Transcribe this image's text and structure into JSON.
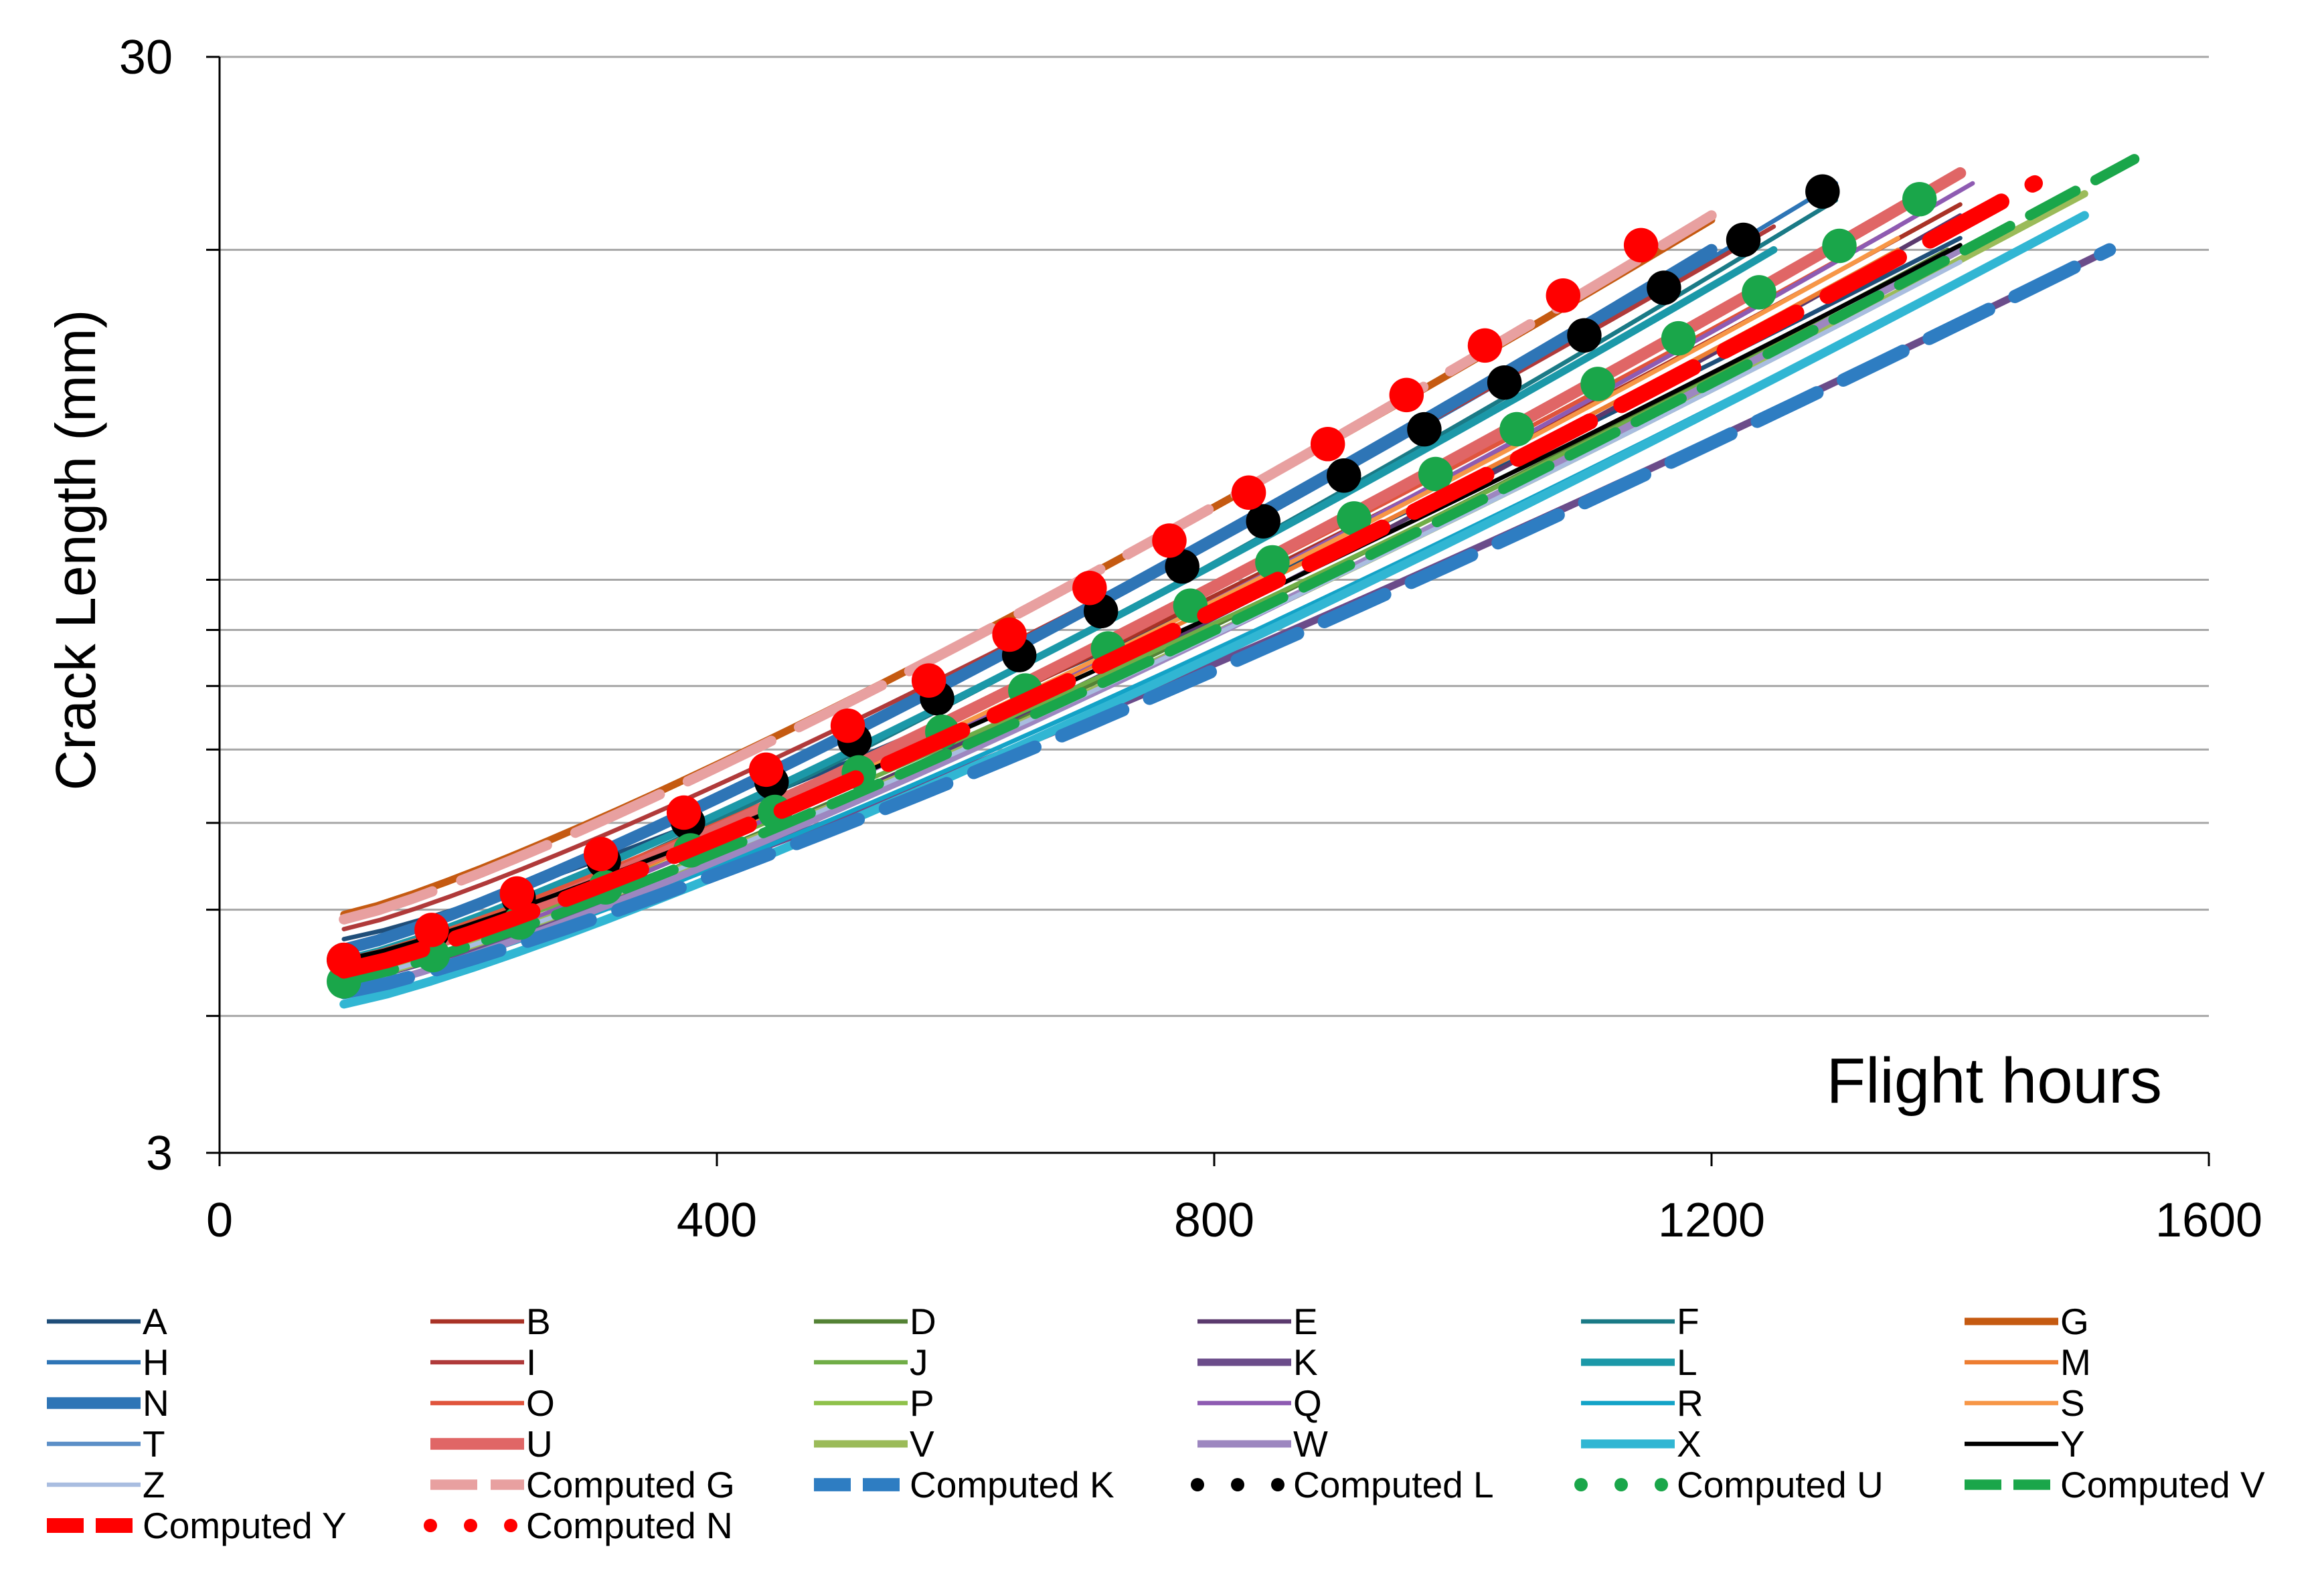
{
  "chart_data": {
    "type": "line",
    "title": "",
    "xlabel": "Flight hours",
    "ylabel": "Crack Length (mm)",
    "x_scale": "linear",
    "y_scale": "log",
    "xlim": [
      0,
      1600
    ],
    "ylim": [
      3,
      30
    ],
    "x_ticks": [
      0,
      400,
      800,
      1200,
      1600
    ],
    "x_tick_labels": [
      "0",
      "400",
      "800",
      "1200",
      "1600"
    ],
    "y_tick_labels": [
      {
        "value": 3,
        "label": "3"
      },
      {
        "value": 30,
        "label": "30"
      }
    ],
    "y_gridlines": [
      4,
      5,
      6,
      7,
      8,
      9,
      10,
      20,
      30
    ],
    "grid": true,
    "legend_position": "bottom",
    "series": [
      {
        "name": "A",
        "color": "#1f4e79",
        "style": "solid",
        "width": 3,
        "x": [
          100,
          1400
        ],
        "y": [
          4.7,
          20.5
        ]
      },
      {
        "name": "B",
        "color": "#a93226",
        "style": "solid",
        "width": 3,
        "x": [
          100,
          1400
        ],
        "y": [
          4.5,
          22.0
        ]
      },
      {
        "name": "D",
        "color": "#548235",
        "style": "solid",
        "width": 3,
        "x": [
          100,
          1390
        ],
        "y": [
          4.3,
          20.0
        ]
      },
      {
        "name": "E",
        "color": "#5b3a6e",
        "style": "solid",
        "width": 3,
        "x": [
          100,
          1400
        ],
        "y": [
          4.2,
          21.5
        ]
      },
      {
        "name": "F",
        "color": "#1a7a86",
        "style": "solid",
        "width": 3,
        "x": [
          100,
          1300
        ],
        "y": [
          4.4,
          22.2
        ]
      },
      {
        "name": "G",
        "color": "#c55a11",
        "style": "solid",
        "width": 5,
        "x": [
          100,
          1200
        ],
        "y": [
          4.95,
          21.3
        ]
      },
      {
        "name": "H",
        "color": "#2e75b6",
        "style": "solid",
        "width": 3,
        "x": [
          100,
          1300
        ],
        "y": [
          4.6,
          23.0
        ]
      },
      {
        "name": "I",
        "color": "#b03a3a",
        "style": "solid",
        "width": 3,
        "x": [
          100,
          1250
        ],
        "y": [
          4.8,
          21.0
        ]
      },
      {
        "name": "J",
        "color": "#70ad47",
        "style": "solid",
        "width": 3,
        "x": [
          100,
          1400
        ],
        "y": [
          4.4,
          20.0
        ]
      },
      {
        "name": "K",
        "color": "#6b4c8a",
        "style": "solid",
        "width": 5,
        "x": [
          100,
          1520
        ],
        "y": [
          4.3,
          20.0
        ]
      },
      {
        "name": "L",
        "color": "#1b98a8",
        "style": "solid",
        "width": 5,
        "x": [
          100,
          1250
        ],
        "y": [
          4.5,
          20.0
        ]
      },
      {
        "name": "M",
        "color": "#ed7d31",
        "style": "solid",
        "width": 3,
        "x": [
          100,
          1350
        ],
        "y": [
          4.4,
          20.0
        ]
      },
      {
        "name": "N",
        "color": "#2e75b6",
        "style": "solid",
        "width": 8,
        "x": [
          100,
          1200
        ],
        "y": [
          4.6,
          20.0
        ]
      },
      {
        "name": "O",
        "color": "#e0543c",
        "style": "solid",
        "width": 3,
        "x": [
          100,
          1350
        ],
        "y": [
          4.5,
          21.0
        ]
      },
      {
        "name": "P",
        "color": "#8fc14a",
        "style": "solid",
        "width": 3,
        "x": [
          100,
          1400
        ],
        "y": [
          4.3,
          19.5
        ]
      },
      {
        "name": "Q",
        "color": "#8e5bb2",
        "style": "solid",
        "width": 3,
        "x": [
          100,
          1410
        ],
        "y": [
          4.3,
          23.0
        ]
      },
      {
        "name": "R",
        "color": "#13a3c7",
        "style": "solid",
        "width": 3,
        "x": [
          100,
          1500
        ],
        "y": [
          4.2,
          21.5
        ]
      },
      {
        "name": "S",
        "color": "#f79646",
        "style": "solid",
        "width": 3,
        "x": [
          100,
          1350
        ],
        "y": [
          4.4,
          20.5
        ]
      },
      {
        "name": "T",
        "color": "#5b8fc7",
        "style": "solid",
        "width": 3,
        "x": [
          100,
          1400
        ],
        "y": [
          4.3,
          19.5
        ]
      },
      {
        "name": "U",
        "color": "#e06666",
        "style": "solid",
        "width": 8,
        "x": [
          100,
          1400
        ],
        "y": [
          4.4,
          23.5
        ]
      },
      {
        "name": "V",
        "color": "#9bbb59",
        "style": "solid",
        "width": 5,
        "x": [
          100,
          1500
        ],
        "y": [
          4.3,
          22.5
        ]
      },
      {
        "name": "W",
        "color": "#9d87c0",
        "style": "solid",
        "width": 5,
        "x": [
          100,
          1400
        ],
        "y": [
          4.2,
          20.0
        ]
      },
      {
        "name": "X",
        "color": "#31b6d3",
        "style": "solid",
        "width": 6,
        "x": [
          100,
          1500
        ],
        "y": [
          4.1,
          21.5
        ]
      },
      {
        "name": "Y",
        "color": "#000000",
        "style": "solid",
        "width": 3,
        "x": [
          100,
          1400
        ],
        "y": [
          4.5,
          20.2
        ]
      },
      {
        "name": "Z",
        "color": "#a9bde0",
        "style": "solid",
        "width": 3,
        "x": [
          100,
          1400
        ],
        "y": [
          4.3,
          19.5
        ]
      },
      {
        "name": "Computed G",
        "color": "#e8a0a0",
        "style": "long-dash",
        "width": 7,
        "x": [
          100,
          1200
        ],
        "y": [
          4.9,
          21.5
        ]
      },
      {
        "name": "Computed K",
        "color": "#2e7dc2",
        "style": "dash",
        "width": 9,
        "x": [
          100,
          1520
        ],
        "y": [
          4.2,
          20.0
        ]
      },
      {
        "name": "Computed L",
        "color": "#000000",
        "style": "dot",
        "width": 9,
        "x": [
          100,
          1300
        ],
        "y": [
          4.5,
          23.0
        ]
      },
      {
        "name": "Computed U",
        "color": "#1aa64a",
        "style": "dot",
        "width": 9,
        "x": [
          100,
          1430
        ],
        "y": [
          4.3,
          24.5
        ]
      },
      {
        "name": "Computed V",
        "color": "#1aa64a",
        "style": "dash",
        "width": 7,
        "x": [
          100,
          1540
        ],
        "y": [
          4.3,
          24.2
        ]
      },
      {
        "name": "Computed Y",
        "color": "#ff0000",
        "style": "dash",
        "width": 11,
        "x": [
          100,
          1460
        ],
        "y": [
          4.4,
          23.0
        ]
      },
      {
        "name": "Computed N",
        "color": "#ff0000",
        "style": "dot",
        "width": 9,
        "x": [
          100,
          1180
        ],
        "y": [
          4.5,
          21.5
        ]
      }
    ]
  }
}
